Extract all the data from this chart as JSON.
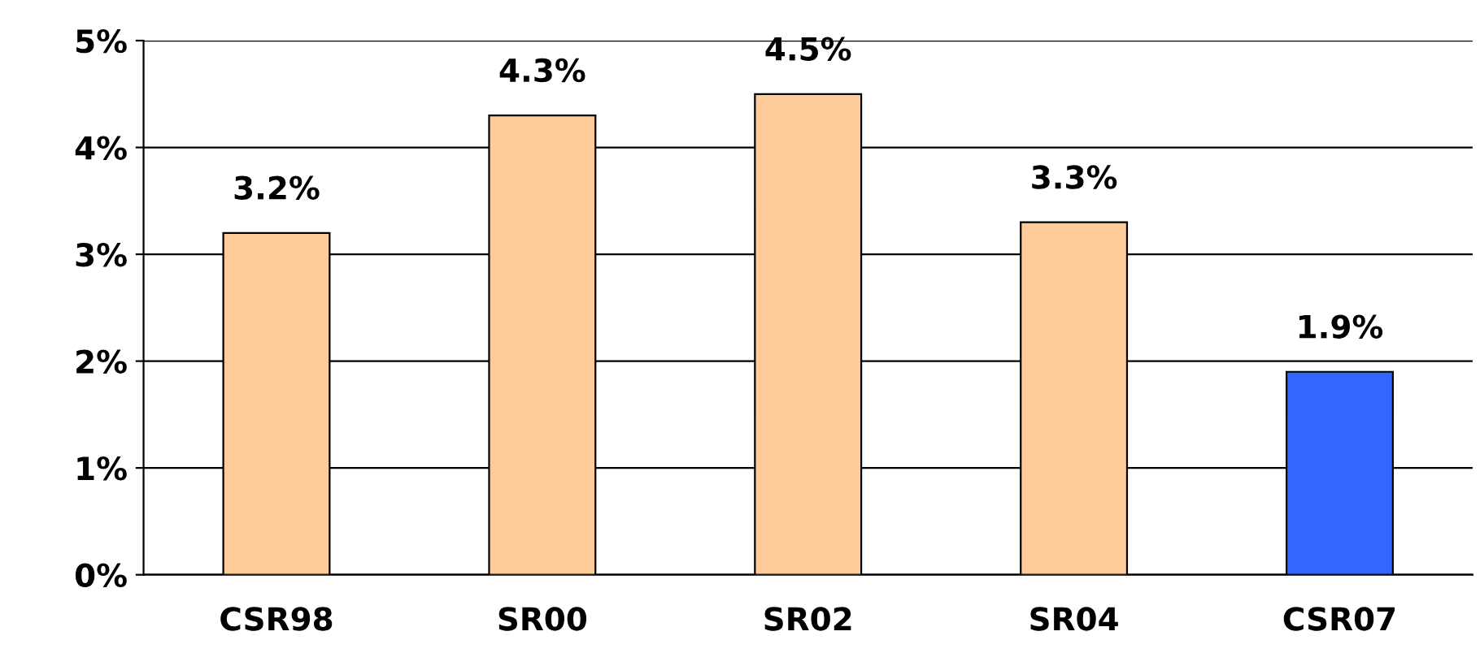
{
  "chart_data": {
    "type": "bar",
    "categories": [
      "CSR98",
      "SR00",
      "SR02",
      "SR04",
      "CSR07"
    ],
    "values": [
      3.2,
      4.3,
      4.5,
      3.3,
      1.9
    ],
    "colors": [
      "#ffcc99",
      "#ffcc99",
      "#ffcc99",
      "#ffcc99",
      "#3366ff"
    ],
    "value_labels": [
      "3.2%",
      "4.3%",
      "4.5%",
      "3.3%",
      "1.9%"
    ],
    "ylim": [
      0,
      5
    ],
    "yticks": [
      {
        "value": 0,
        "label": "0%"
      },
      {
        "value": 1,
        "label": "1%"
      },
      {
        "value": 2,
        "label": "2%"
      },
      {
        "value": 3,
        "label": "3%"
      },
      {
        "value": 4,
        "label": "4%"
      },
      {
        "value": 5,
        "label": "5%"
      }
    ],
    "grid": "y"
  }
}
